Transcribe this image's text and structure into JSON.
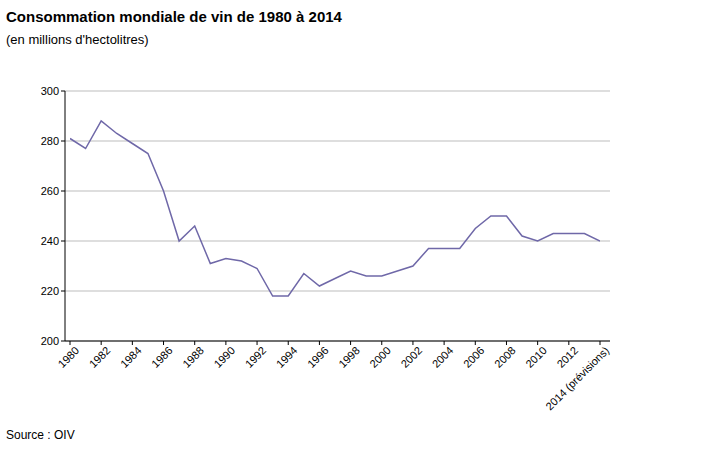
{
  "chart_data": {
    "type": "line",
    "title": "Consommation mondiale de vin de 1980 à 2014",
    "subtitle": "(en millions d'hectolitres)",
    "source": "Source : OIV",
    "x": [
      1980,
      1981,
      1982,
      1983,
      1984,
      1985,
      1986,
      1987,
      1988,
      1989,
      1990,
      1991,
      1992,
      1993,
      1994,
      1995,
      1996,
      1997,
      1998,
      1999,
      2000,
      2001,
      2002,
      2003,
      2004,
      2005,
      2006,
      2007,
      2008,
      2009,
      2010,
      2011,
      2012,
      2013,
      2014
    ],
    "values": [
      281,
      277,
      288,
      283,
      279,
      275,
      260,
      240,
      246,
      231,
      233,
      232,
      229,
      218,
      218,
      227,
      222,
      225,
      228,
      226,
      226,
      228,
      230,
      237,
      237,
      237,
      245,
      250,
      250,
      242,
      240,
      243,
      243,
      243,
      240
    ],
    "color": "#6f68a8",
    "xlim": [
      1980,
      2014
    ],
    "xticks": [
      1980,
      1982,
      1984,
      1986,
      1988,
      1990,
      1992,
      1994,
      1996,
      1998,
      2000,
      2002,
      2004,
      2006,
      2008,
      2010,
      2012,
      {
        "value": 2014,
        "label": "2014 (prévisions)"
      }
    ],
    "ylim": [
      200,
      300
    ],
    "yticks": [
      200,
      220,
      240,
      260,
      280,
      300
    ],
    "grid": true
  }
}
